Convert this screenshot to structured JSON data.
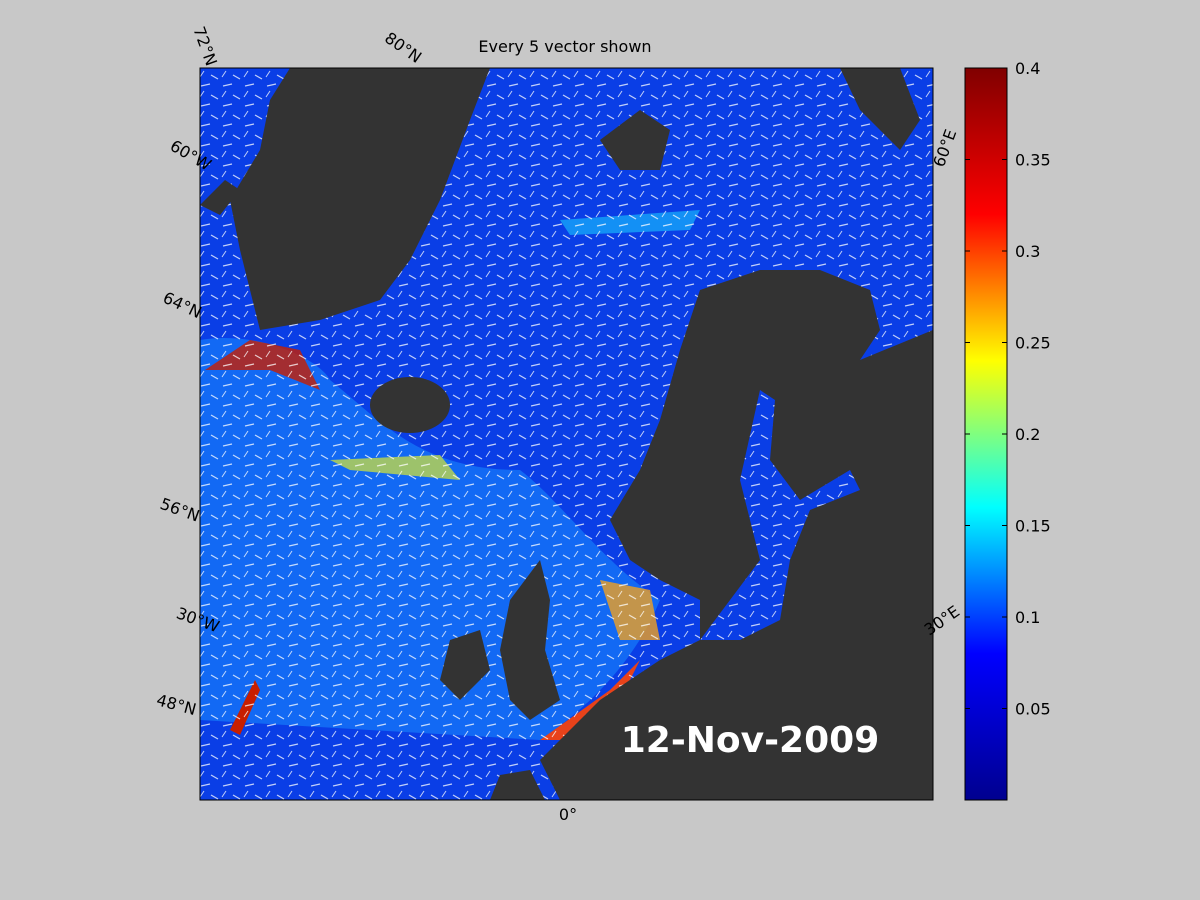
{
  "title": "Every 5 vector shown",
  "date": "12-Nov-2009",
  "graticule_labels": [
    "72°N",
    "80°N",
    "60°W",
    "64°N",
    "56°N",
    "30°W",
    "48°N",
    "0°",
    "30°E",
    "60°E"
  ],
  "colorbar": {
    "lim": [
      0,
      0.4
    ],
    "ticks": [
      0.05,
      0.1,
      0.15,
      0.2,
      0.25,
      0.3,
      0.35,
      0.4
    ],
    "colors": [
      "#00008f",
      "#0000ff",
      "#00ffff",
      "#ffff00",
      "#ff0000",
      "#800000"
    ]
  }
}
